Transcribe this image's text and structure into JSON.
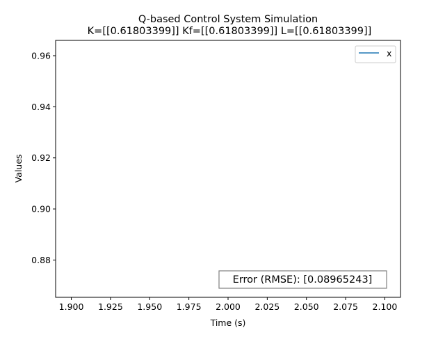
{
  "chart_data": {
    "type": "line",
    "title": "Q-based Control System Simulation",
    "subtitle": "K=[[0.61803399]] Kf=[[0.61803399]] L=[[0.61803399]]",
    "xlabel": "Time (s)",
    "ylabel": "Values",
    "xlim": [
      1.89,
      2.11
    ],
    "ylim": [
      0.8654,
      0.966
    ],
    "x_ticks": [
      "1.900",
      "1.925",
      "1.950",
      "1.975",
      "2.000",
      "2.025",
      "2.050",
      "2.075",
      "2.100"
    ],
    "x_tick_values": [
      1.9,
      1.925,
      1.95,
      1.975,
      2.0,
      2.025,
      2.05,
      2.075,
      2.1
    ],
    "y_ticks": [
      "0.88",
      "0.90",
      "0.92",
      "0.94",
      "0.96"
    ],
    "y_tick_values": [
      0.88,
      0.9,
      0.92,
      0.94,
      0.96
    ],
    "grid": false,
    "legend_position": "top-right",
    "series": [
      {
        "name": "x",
        "color": "#1f77b4",
        "x": [],
        "y": []
      }
    ],
    "annotation": "Error (RMSE): [0.08965243]"
  }
}
